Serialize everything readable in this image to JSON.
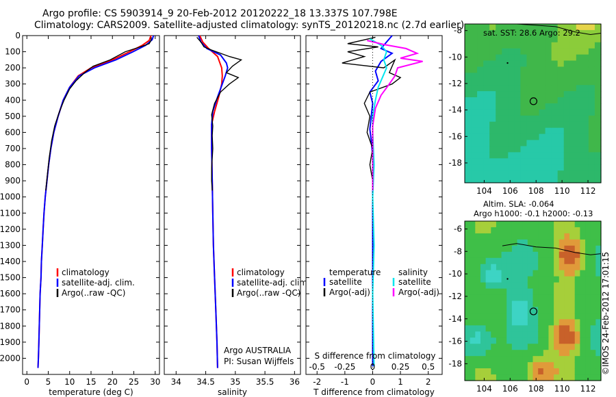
{
  "titles": {
    "line1": "Argo profile: CS 5903914_9 20-Feb-2012 20120222_18 13.337S 107.798E",
    "line2": "Climatology: CARS2009. Satellite-adjusted climatology: synTS_20120218.nc (2.7d earlier)"
  },
  "colors": {
    "climatology": "#ff0000",
    "satellite": "#0000ff",
    "argo": "#000000",
    "salinity_sat": "#00e5ee",
    "salinity_argo": "#ff00ff"
  },
  "chart_data": [
    {
      "type": "line",
      "id": "temperature",
      "xlabel": "temperature (deg C)",
      "xlim": [
        -1,
        31
      ],
      "ylim": [
        2100,
        0
      ],
      "x_ticks": [
        0,
        5,
        10,
        15,
        20,
        25,
        30
      ],
      "y_ticks": [
        0,
        100,
        200,
        300,
        400,
        500,
        600,
        700,
        800,
        900,
        1000,
        1100,
        1200,
        1300,
        1400,
        1500,
        1600,
        1700,
        1800,
        1900,
        2000
      ],
      "legend": [
        "climatology",
        "satellite-adj. clim.",
        "Argo(..raw -QC)"
      ],
      "series": [
        {
          "name": "climatology",
          "color": "#ff0000",
          "points": [
            [
              29.0,
              0
            ],
            [
              28.6,
              30
            ],
            [
              27.0,
              60
            ],
            [
              24.0,
              100
            ],
            [
              20.0,
              150
            ],
            [
              15.0,
              200
            ],
            [
              12.0,
              250
            ],
            [
              10.0,
              320
            ],
            [
              8.5,
              400
            ],
            [
              7.3,
              500
            ],
            [
              6.3,
              600
            ],
            [
              5.6,
              700
            ],
            [
              5.1,
              800
            ],
            [
              4.7,
              900
            ],
            [
              4.3,
              1000
            ],
            [
              4.0,
              1100
            ],
            [
              3.8,
              1200
            ],
            [
              3.6,
              1300
            ],
            [
              3.4,
              1400
            ],
            [
              3.3,
              1500
            ],
            [
              3.1,
              1600
            ],
            [
              3.0,
              1700
            ],
            [
              2.9,
              1800
            ],
            [
              2.8,
              1900
            ],
            [
              2.7,
              2000
            ],
            [
              2.6,
              2060
            ]
          ]
        },
        {
          "name": "satellite-adj. clim.",
          "color": "#0000ff",
          "points": [
            [
              29.6,
              0
            ],
            [
              29.3,
              25
            ],
            [
              27.8,
              60
            ],
            [
              24.8,
              100
            ],
            [
              20.8,
              150
            ],
            [
              15.8,
              200
            ],
            [
              12.2,
              250
            ],
            [
              10.0,
              320
            ],
            [
              8.5,
              400
            ],
            [
              7.3,
              500
            ],
            [
              6.3,
              600
            ],
            [
              5.6,
              700
            ],
            [
              5.1,
              800
            ],
            [
              4.7,
              900
            ],
            [
              4.3,
              1000
            ],
            [
              4.0,
              1100
            ],
            [
              3.8,
              1200
            ],
            [
              3.6,
              1300
            ],
            [
              3.4,
              1400
            ],
            [
              3.3,
              1500
            ],
            [
              3.1,
              1600
            ],
            [
              3.0,
              1700
            ],
            [
              2.9,
              1800
            ],
            [
              2.8,
              1900
            ],
            [
              2.7,
              2000
            ],
            [
              2.6,
              2060
            ]
          ]
        },
        {
          "name": "Argo(..raw -QC)",
          "color": "#000000",
          "points": [
            [
              29.1,
              10
            ],
            [
              29.0,
              30
            ],
            [
              28.6,
              50
            ],
            [
              26.5,
              70
            ],
            [
              23.0,
              100
            ],
            [
              19.5,
              150
            ],
            [
              15.5,
              190
            ],
            [
              13.5,
              230
            ],
            [
              11.5,
              280
            ],
            [
              10.0,
              330
            ],
            [
              8.7,
              400
            ],
            [
              7.5,
              480
            ],
            [
              6.5,
              560
            ],
            [
              5.8,
              650
            ],
            [
              5.2,
              760
            ],
            [
              4.8,
              860
            ],
            [
              4.4,
              960
            ]
          ]
        }
      ]
    },
    {
      "type": "line",
      "id": "salinity",
      "xlabel": "salinity",
      "xlim": [
        33.8,
        36.1
      ],
      "ylim": [
        2100,
        0
      ],
      "x_ticks": [
        34,
        34.5,
        35,
        35.5,
        36
      ],
      "legend": [
        "climatology",
        "satellite-adj. clim.",
        "Argo(..raw -QC)"
      ],
      "annotation": [
        "Argo AUSTRALIA",
        "PI: Susan Wijffels"
      ],
      "series": [
        {
          "name": "climatology",
          "color": "#ff0000",
          "points": [
            [
              34.4,
              0
            ],
            [
              34.45,
              40
            ],
            [
              34.55,
              80
            ],
            [
              34.7,
              130
            ],
            [
              34.77,
              200
            ],
            [
              34.78,
              250
            ],
            [
              34.77,
              300
            ],
            [
              34.72,
              380
            ],
            [
              34.65,
              470
            ],
            [
              34.6,
              550
            ],
            [
              34.6,
              700
            ],
            [
              34.61,
              900
            ],
            [
              34.62,
              1100
            ],
            [
              34.63,
              1300
            ],
            [
              34.65,
              1500
            ],
            [
              34.67,
              1700
            ],
            [
              34.69,
              1900
            ],
            [
              34.7,
              2060
            ]
          ]
        },
        {
          "name": "satellite-adj. clim.",
          "color": "#0000ff",
          "points": [
            [
              34.38,
              0
            ],
            [
              34.42,
              40
            ],
            [
              34.52,
              80
            ],
            [
              34.75,
              120
            ],
            [
              34.85,
              170
            ],
            [
              34.87,
              200
            ],
            [
              34.83,
              250
            ],
            [
              34.78,
              300
            ],
            [
              34.7,
              380
            ],
            [
              34.62,
              470
            ],
            [
              34.6,
              550
            ],
            [
              34.6,
              700
            ],
            [
              34.61,
              900
            ],
            [
              34.62,
              1100
            ],
            [
              34.63,
              1300
            ],
            [
              34.65,
              1500
            ],
            [
              34.67,
              1700
            ],
            [
              34.69,
              1900
            ],
            [
              34.7,
              2060
            ]
          ]
        },
        {
          "name": "Argo(..raw -QC)",
          "color": "#000000",
          "points": [
            [
              34.35,
              10
            ],
            [
              34.42,
              40
            ],
            [
              34.47,
              70
            ],
            [
              34.6,
              90
            ],
            [
              34.75,
              110
            ],
            [
              34.9,
              130
            ],
            [
              35.1,
              150
            ],
            [
              34.95,
              190
            ],
            [
              34.85,
              230
            ],
            [
              35.05,
              260
            ],
            [
              34.9,
              300
            ],
            [
              34.75,
              350
            ],
            [
              34.65,
              420
            ],
            [
              34.6,
              490
            ],
            [
              34.62,
              560
            ],
            [
              34.61,
              620
            ],
            [
              34.62,
              700
            ],
            [
              34.61,
              760
            ],
            [
              34.6,
              820
            ],
            [
              34.6,
              900
            ],
            [
              34.61,
              960
            ]
          ]
        }
      ]
    },
    {
      "type": "line",
      "id": "difference",
      "xlabel": "T difference from climatology",
      "xlabel_top": "S difference from climatology",
      "xlim": [
        -2.4,
        2.5
      ],
      "ylim": [
        2100,
        0
      ],
      "x_ticks": [
        -2,
        -1,
        0,
        1,
        2
      ],
      "top_ticks": [
        "-0.5",
        "-0.25",
        "0",
        "0.25",
        "0.5"
      ],
      "legend_temperature": {
        "title": "temperature",
        "items": [
          "satellite",
          "Argo(-adj)"
        ]
      },
      "legend_salinity": {
        "title": "salinity",
        "items": [
          "satellite",
          "Argo(-adj)"
        ]
      },
      "series": [
        {
          "name": "temperature satellite",
          "color": "#0000ff",
          "points": [
            [
              0.7,
              0
            ],
            [
              0.5,
              40
            ],
            [
              0.3,
              80
            ],
            [
              0.7,
              110
            ],
            [
              0.3,
              160
            ],
            [
              0.1,
              220
            ],
            [
              0.2,
              280
            ],
            [
              -0.1,
              350
            ],
            [
              0.0,
              420
            ],
            [
              -0.05,
              500
            ],
            [
              -0.1,
              580
            ],
            [
              -0.05,
              650
            ],
            [
              0.0,
              750
            ],
            [
              0.0,
              900
            ],
            [
              0.0,
              1100
            ],
            [
              0.0,
              1400
            ],
            [
              0.0,
              1700
            ],
            [
              0.0,
              2050
            ]
          ]
        },
        {
          "name": "temperature Argo(-adj)",
          "color": "#000000",
          "points": [
            [
              0.1,
              10
            ],
            [
              -0.9,
              50
            ],
            [
              0.2,
              70
            ],
            [
              -0.9,
              100
            ],
            [
              -0.3,
              130
            ],
            [
              -1.1,
              170
            ],
            [
              0.4,
              200
            ],
            [
              0.8,
              150
            ],
            [
              0.6,
              230
            ],
            [
              1.0,
              260
            ],
            [
              0.7,
              300
            ],
            [
              -0.1,
              350
            ],
            [
              -0.3,
              420
            ],
            [
              -0.1,
              500
            ],
            [
              -0.2,
              600
            ],
            [
              0.0,
              700
            ],
            [
              -0.1,
              800
            ],
            [
              0.0,
              900
            ],
            [
              0.0,
              960
            ]
          ]
        },
        {
          "name": "salinity satellite",
          "color": "#00e5ee",
          "points": [
            [
              -0.1,
              20
            ],
            [
              0.3,
              60
            ],
            [
              0.5,
              100
            ],
            [
              0.4,
              150
            ],
            [
              0.5,
              200
            ],
            [
              0.35,
              260
            ],
            [
              0.2,
              320
            ],
            [
              0.1,
              400
            ],
            [
              0.0,
              500
            ],
            [
              0.0,
              600
            ],
            [
              0.05,
              800
            ],
            [
              0.0,
              1000
            ],
            [
              0.05,
              1300
            ],
            [
              0.0,
              1600
            ],
            [
              0.05,
              2050
            ]
          ]
        },
        {
          "name": "salinity Argo(-adj)",
          "color": "#ff00ff",
          "points": [
            [
              -0.2,
              30
            ],
            [
              0.4,
              55
            ],
            [
              1.2,
              80
            ],
            [
              1.6,
              110
            ],
            [
              1.0,
              140
            ],
            [
              1.8,
              160
            ],
            [
              0.9,
              200
            ],
            [
              0.8,
              250
            ],
            [
              0.6,
              300
            ],
            [
              0.3,
              370
            ],
            [
              0.1,
              450
            ],
            [
              0.0,
              560
            ],
            [
              0.0,
              700
            ],
            [
              0.0,
              850
            ],
            [
              0.0,
              960
            ]
          ]
        }
      ]
    },
    {
      "type": "heatmap",
      "id": "sst_map",
      "title": "sat. SST: 28.6  Argo: 29.2",
      "xlim": [
        102.5,
        113.0
      ],
      "ylim": [
        -19.5,
        -7.5
      ],
      "x_ticks": [
        104,
        106,
        108,
        110,
        112
      ],
      "y_ticks": [
        -8,
        -10,
        -12,
        -14,
        -16,
        -18
      ],
      "profile_location": [
        107.8,
        -13.34
      ]
    },
    {
      "type": "heatmap",
      "id": "sla_map",
      "title": [
        "Altim. SLA: -0.064",
        "Argo h1000: -0.1  h2000: -0.13"
      ],
      "xlim": [
        102.5,
        113.0
      ],
      "ylim": [
        -19.5,
        -5.3
      ],
      "x_ticks": [
        104,
        106,
        108,
        110,
        112
      ],
      "y_ticks": [
        -6,
        -8,
        -10,
        -12,
        -14,
        -16,
        -18
      ],
      "profile_location": [
        107.8,
        -13.34
      ]
    }
  ],
  "footer": {
    "stamp": "©IMOS 24-Feb-2012 17:01:15"
  }
}
